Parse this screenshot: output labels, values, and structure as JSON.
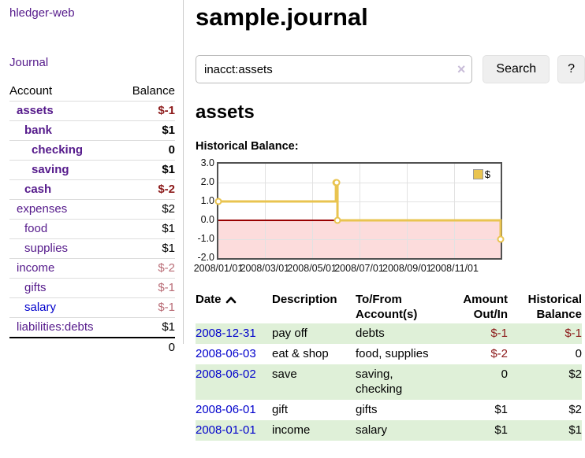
{
  "sidebar": {
    "brand": "hledger-web",
    "journal_link": "Journal",
    "accounts_table": {
      "headers": {
        "account": "Account",
        "balance": "Balance"
      },
      "rows": [
        {
          "name": "assets",
          "level": 1,
          "bold": true,
          "balance": "$-1",
          "balance_style": "negative"
        },
        {
          "name": "bank",
          "level": 2,
          "bold": true,
          "balance": "$1",
          "balance_style": "normal"
        },
        {
          "name": "checking",
          "level": 3,
          "bold": true,
          "balance": "0",
          "balance_style": "normal"
        },
        {
          "name": "saving",
          "level": 3,
          "bold": true,
          "balance": "$1",
          "balance_style": "normal"
        },
        {
          "name": "cash",
          "level": 2,
          "bold": true,
          "balance": "$-2",
          "balance_style": "negative"
        },
        {
          "name": "expenses",
          "level": 1,
          "bold": false,
          "balance": "$2",
          "balance_style": "normal"
        },
        {
          "name": "food",
          "level": 2,
          "bold": false,
          "balance": "$1",
          "balance_style": "normal"
        },
        {
          "name": "supplies",
          "level": 2,
          "bold": false,
          "balance": "$1",
          "balance_style": "normal"
        },
        {
          "name": "income",
          "level": 1,
          "bold": false,
          "balance": "$-2",
          "balance_style": "negative-muted"
        },
        {
          "name": "gifts",
          "level": 2,
          "bold": false,
          "balance": "$-1",
          "balance_style": "negative-muted"
        },
        {
          "name": "salary",
          "level": 2,
          "bold": false,
          "balance": "$-1",
          "balance_style": "negative-muted",
          "link_style": "unvisited"
        },
        {
          "name": "liabilities:debts",
          "level": 1,
          "bold": false,
          "balance": "$1",
          "balance_style": "normal"
        }
      ],
      "total": "0"
    }
  },
  "main": {
    "title": "sample.journal",
    "search": {
      "value": "inacct:assets",
      "clear_icon": "×",
      "search_label": "Search",
      "help_label": "?"
    },
    "account_heading": "assets",
    "chart_title": "Historical Balance:",
    "register_table": {
      "headers": {
        "date": "Date",
        "description": "Description",
        "to_from": "To/From Account(s)",
        "amount": "Amount Out/In",
        "balance": "Historical Balance"
      },
      "rows": [
        {
          "date": "2008-12-31",
          "description": "pay off",
          "to_from": "debts",
          "amount": "$-1",
          "amount_negative": true,
          "balance": "$-1",
          "balance_negative": true
        },
        {
          "date": "2008-06-03",
          "description": "eat & shop",
          "to_from": "food, supplies",
          "amount": "$-2",
          "amount_negative": true,
          "balance": "0",
          "balance_negative": false
        },
        {
          "date": "2008-06-02",
          "description": "save",
          "to_from": "saving,\nchecking",
          "amount": "0",
          "amount_negative": false,
          "balance": "$2",
          "balance_negative": false
        },
        {
          "date": "2008-06-01",
          "description": "gift",
          "to_from": "gifts",
          "amount": "$1",
          "amount_negative": false,
          "balance": "$2",
          "balance_negative": false
        },
        {
          "date": "2008-01-01",
          "description": "income",
          "to_from": "salary",
          "amount": "$1",
          "amount_negative": false,
          "balance": "$1",
          "balance_negative": false
        }
      ]
    }
  },
  "chart_data": {
    "type": "line",
    "step": true,
    "title": "Historical Balance:",
    "series": [
      {
        "name": "$",
        "color": "#e9c450",
        "points": [
          [
            "2008-01-01",
            1
          ],
          [
            "2008-06-01",
            2
          ],
          [
            "2008-06-02",
            2
          ],
          [
            "2008-06-03",
            0
          ],
          [
            "2008-12-31",
            -1
          ]
        ]
      }
    ],
    "xrange": [
      "2008-01-01",
      "2008-12-31"
    ],
    "ylim": [
      -2,
      3
    ],
    "yticks": [
      3.0,
      2.0,
      1.0,
      0.0,
      -1.0,
      -2.0
    ],
    "xticks": [
      "2008/01/01",
      "2008/03/01",
      "2008/05/01",
      "2008/07/01",
      "2008/09/01",
      "2008/11/01"
    ],
    "grid": true,
    "legend": {
      "label": "$",
      "position": "top-right"
    },
    "zero_line_color": "#990000",
    "negative_region_color": "#fcdcdc",
    "marker": "open-circle"
  },
  "colors": {
    "link_visited_purple": "#551a8b",
    "link_blue": "#0000cc",
    "negative_strong": "#8c1a1a",
    "negative_muted": "#b96c76",
    "row_highlight_green": "#dff0d8",
    "series_gold": "#e9c450"
  }
}
